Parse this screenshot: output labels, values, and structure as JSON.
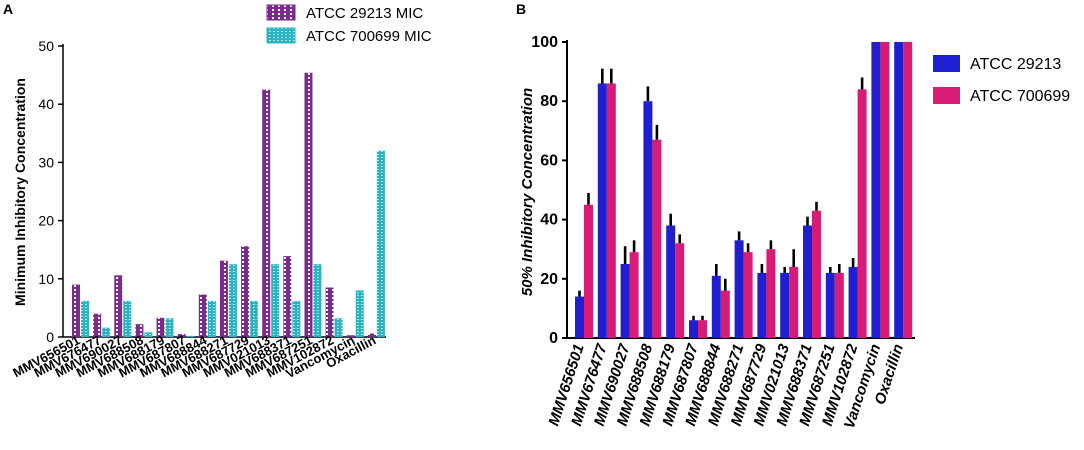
{
  "figure": {
    "panel_a_label": "A",
    "panel_b_label": "B"
  },
  "colors": {
    "a_series1": "#7b2b8f",
    "a_series1_pattern": "#ffffff",
    "a_series2": "#2bb3c0",
    "a_series2_pattern": "#d9f6f8",
    "b_series1": "#1f1fd0",
    "b_series2": "#d81b74",
    "axis": "#000000",
    "errorbar": "#000000"
  },
  "chart_data": [
    {
      "panel": "A",
      "type": "bar",
      "title": "",
      "xlabel": "",
      "ylabel": "Minimum Inhibitory Concentration",
      "ylim": [
        0,
        50
      ],
      "yticks": [
        0,
        10,
        20,
        30,
        40,
        50
      ],
      "grid": false,
      "legend_position": "top-center",
      "categories": [
        "MMV656501",
        "MMV676477",
        "MMV690027",
        "MMV688508",
        "MMV688179",
        "MMV687807",
        "MMV688844",
        "MMV688271",
        "MMV687729",
        "MMV021013",
        "MMV688371",
        "MMV687251",
        "MMV102872",
        "Vancomycin",
        "Oxacillin"
      ],
      "series": [
        {
          "name": "ATCC 29213 MIC",
          "values": [
            9.0,
            4.0,
            10.6,
            2.2,
            3.3,
            0.5,
            7.3,
            13.1,
            15.6,
            42.5,
            13.9,
            45.4,
            8.5,
            0.3,
            0.6
          ]
        },
        {
          "name": "ATCC 700699 MIC",
          "values": [
            6.2,
            1.6,
            6.2,
            0.8,
            3.2,
            0.2,
            6.2,
            12.5,
            6.2,
            12.5,
            6.2,
            12.5,
            3.2,
            8.0,
            32.0
          ]
        }
      ]
    },
    {
      "panel": "B",
      "type": "bar",
      "title": "",
      "xlabel": "",
      "ylabel": "50% Inhibitory Concentration",
      "ylim": [
        0,
        100
      ],
      "yticks": [
        0,
        20,
        40,
        60,
        80,
        100
      ],
      "grid": false,
      "legend_position": "top-right",
      "categories": [
        "MMV656501",
        "MMV676477",
        "MMV690027",
        "MMV688508",
        "MMV688179",
        "MMV687807",
        "MMV688844",
        "MMV688271",
        "MMV687729",
        "MMV021013",
        "MMV688371",
        "MMV687251",
        "MMV102872",
        "Vancomycin",
        "Oxacillin"
      ],
      "series": [
        {
          "name": "ATCC 29213",
          "values": [
            14,
            86,
            25,
            80,
            38,
            6,
            21,
            33,
            22,
            22,
            38,
            22,
            24,
            100,
            100
          ],
          "errors": [
            2,
            5,
            6,
            5,
            4,
            1.5,
            4,
            3,
            3,
            2,
            3,
            2,
            3,
            0,
            0
          ]
        },
        {
          "name": "ATCC 700699",
          "values": [
            45,
            86,
            29,
            67,
            32,
            6,
            16,
            29,
            30,
            24,
            43,
            22,
            84,
            100,
            100
          ],
          "errors": [
            4,
            5,
            4,
            5,
            3,
            1.5,
            4,
            3,
            3,
            6,
            3,
            3,
            4,
            0,
            0
          ]
        }
      ]
    }
  ]
}
